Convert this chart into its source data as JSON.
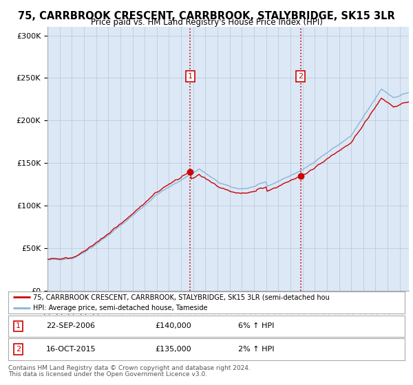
{
  "title": "75, CARRBROOK CRESCENT, CARRBROOK, STALYBRIDGE, SK15 3LR",
  "subtitle": "Price paid vs. HM Land Registry's House Price Index (HPI)",
  "ylabel_ticks": [
    "£0",
    "£50K",
    "£100K",
    "£150K",
    "£200K",
    "£250K",
    "£300K"
  ],
  "ytick_values": [
    0,
    50000,
    100000,
    150000,
    200000,
    250000,
    300000
  ],
  "ylim": [
    0,
    310000
  ],
  "background_color": "#ffffff",
  "plot_bg_color": "#dce8f5",
  "grid_color": "#bbccdd",
  "hpi_line_color": "#8ab4d8",
  "price_line_color": "#cc0000",
  "vline_color": "#cc0000",
  "marker1_price": 140000,
  "marker2_price": 135000,
  "marker1_label": "22-SEP-2006",
  "marker2_label": "16-OCT-2015",
  "marker1_pct": "6% ↑ HPI",
  "marker2_pct": "2% ↑ HPI",
  "legend_label_red": "75, CARRBROOK CRESCENT, CARRBROOK, STALYBRIDGE, SK15 3LR (semi-detached hou",
  "legend_label_blue": "HPI: Average price, semi-detached house, Tameside",
  "footer1": "Contains HM Land Registry data © Crown copyright and database right 2024.",
  "footer2": "This data is licensed under the Open Government Licence v3.0."
}
